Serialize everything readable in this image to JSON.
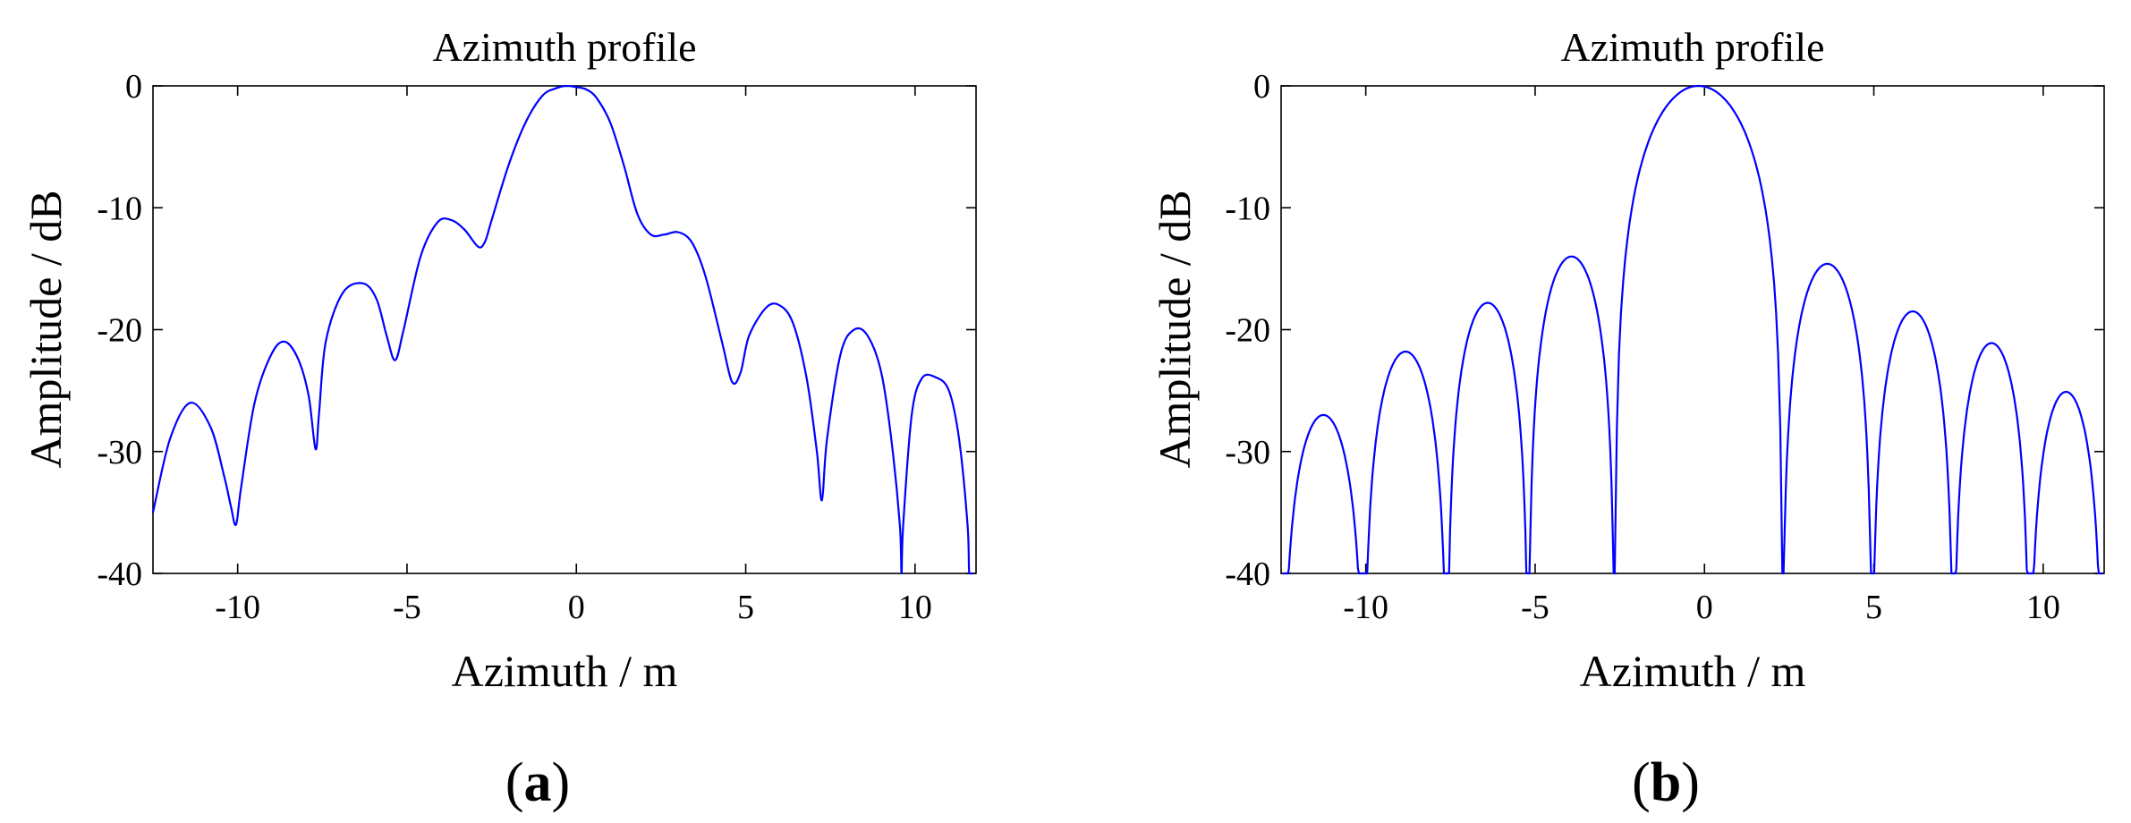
{
  "chart_data": [
    {
      "type": "line",
      "panel_label": "a",
      "title": "Azimuth profile",
      "xlabel": "Azimuth / m",
      "ylabel": "Amplitude / dB",
      "xlim": [
        -12.5,
        11.8
      ],
      "ylim": [
        -40,
        0
      ],
      "xticks": [
        -10,
        -5,
        0,
        5,
        10
      ],
      "xtick_labels": [
        "-10",
        "-5",
        "0",
        "5",
        "10"
      ],
      "yticks": [
        0,
        -10,
        -20,
        -30,
        -40
      ],
      "ytick_labels": [
        "0",
        "-10",
        "-20",
        "-30",
        "-40"
      ],
      "grid": false,
      "legend": "none",
      "line_color": "#0000ff",
      "series": [
        {
          "x": [
            -12.5,
            -12.0,
            -11.4,
            -10.8,
            -10.4,
            -10.2,
            -10.05,
            -9.9,
            -9.5,
            -9.0,
            -8.6,
            -8.2,
            -7.9,
            -7.7,
            -7.6,
            -7.4,
            -6.9,
            -6.3,
            -5.9,
            -5.6,
            -5.35,
            -5.1,
            -4.6,
            -4.1,
            -3.7,
            -3.3,
            -2.9,
            -2.7,
            -2.5,
            -2.0,
            -1.5,
            -1.0,
            -0.6,
            -0.3,
            0.0,
            0.3,
            0.6,
            1.0,
            1.4,
            1.8,
            2.2,
            2.6,
            3.0,
            3.4,
            3.8,
            4.3,
            4.6,
            4.85,
            5.1,
            5.6,
            6.0,
            6.4,
            6.8,
            7.1,
            7.25,
            7.4,
            7.8,
            8.2,
            8.6,
            9.0,
            9.3,
            9.55,
            9.6,
            9.65,
            9.9,
            10.2,
            10.6,
            11.0,
            11.3,
            11.55,
            11.6,
            11.7
          ],
          "y": [
            -35,
            -29,
            -26,
            -28,
            -32,
            -34.5,
            -36,
            -33,
            -26,
            -22,
            -21,
            -22.5,
            -25.5,
            -29.8,
            -27,
            -21,
            -17,
            -16.2,
            -17.5,
            -20.5,
            -22.5,
            -20,
            -14,
            -11.2,
            -11,
            -11.8,
            -13.2,
            -12.8,
            -11,
            -6.5,
            -3,
            -0.8,
            -0.2,
            0,
            -0.1,
            -0.3,
            -1,
            -3,
            -6.5,
            -10.5,
            -12.2,
            -12.2,
            -12,
            -12.8,
            -15.5,
            -21,
            -24.3,
            -23.5,
            -20.5,
            -18.2,
            -18,
            -19.5,
            -24,
            -30,
            -34,
            -29,
            -22,
            -20,
            -20.5,
            -23.5,
            -29,
            -36,
            -40,
            -36,
            -27,
            -24,
            -23.9,
            -25,
            -29,
            -36,
            -40,
            -40
          ]
        }
      ]
    },
    {
      "type": "line",
      "panel_label": "b",
      "title": "Azimuth profile",
      "xlabel": "Azimuth / m",
      "ylabel": "Amplitude / dB",
      "xlim": [
        -12.5,
        11.8
      ],
      "ylim": [
        -40,
        0
      ],
      "xticks": [
        -10,
        -5,
        0,
        5,
        10
      ],
      "xtick_labels": [
        "-10",
        "-5",
        "0",
        "5",
        "10"
      ],
      "yticks": [
        0,
        -10,
        -20,
        -30,
        -40
      ],
      "ytick_labels": [
        "0",
        "-10",
        "-20",
        "-30",
        "-40"
      ],
      "grid": false,
      "legend": "none",
      "line_color": "#0000ff",
      "series": [
        {
          "lobes": [
            {
              "from": -12.45,
              "to": -10.05,
              "peak": -27
            },
            {
              "from": -10.05,
              "to": -7.6,
              "peak": -21.8
            },
            {
              "from": -7.6,
              "to": -5.2,
              "peak": -17.8
            },
            {
              "from": -5.2,
              "to": -2.65,
              "peak": -14
            },
            {
              "from": -2.65,
              "to": 2.3,
              "peak": 0
            },
            {
              "from": 2.3,
              "to": 4.95,
              "peak": -14.6
            },
            {
              "from": 4.95,
              "to": 7.35,
              "peak": -18.5
            },
            {
              "from": 7.35,
              "to": 9.6,
              "peak": -21.1
            },
            {
              "from": 9.6,
              "to": 11.75,
              "peak": -25.1
            }
          ]
        }
      ]
    }
  ]
}
